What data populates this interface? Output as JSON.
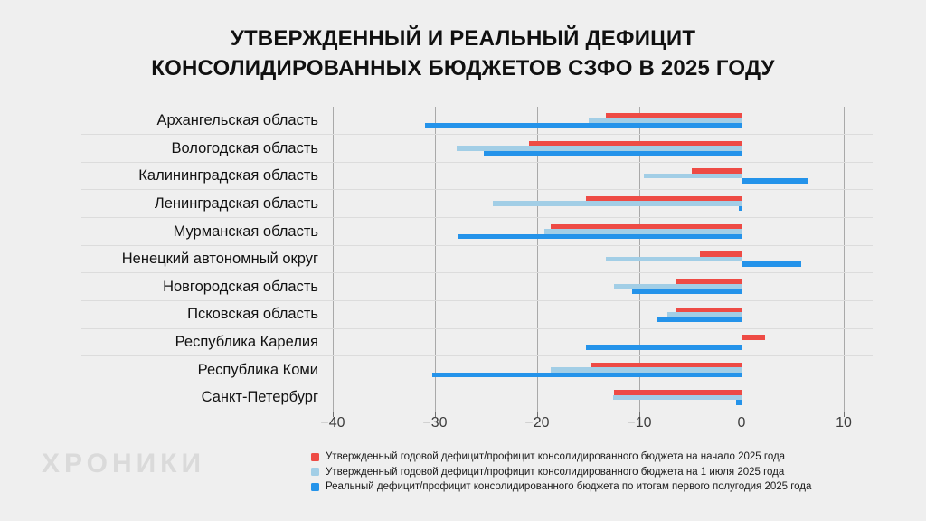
{
  "title": {
    "line1": "УТВЕРЖДЕННЫЙ И РЕАЛЬНЫЙ ДЕФИЦИТ",
    "line2": "КОНСОЛИДИРОВАННЫХ БЮДЖЕТОВ СЗФО В 2025 ГОДУ"
  },
  "logo": "ХРОНИКИ",
  "colors": {
    "background": "#efefef",
    "red": "#ee4b45",
    "light_blue": "#a2cee6",
    "blue": "#2493ea"
  },
  "chart_data": {
    "type": "bar",
    "orientation": "horizontal",
    "title": "УТВЕРЖДЕННЫЙ И РЕАЛЬНЫЙ ДЕФИЦИТ КОНСОЛИДИРОВАННЫХ БЮДЖЕТОВ СЗФО В 2025 ГОДУ",
    "categories": [
      "Архангельская область",
      "Вологодская область",
      "Калининградская область",
      "Ленинградская область",
      "Мурманская область",
      "Ненецкий автономный округ",
      "Новгородская область",
      "Псковская область",
      "Республика Карелия",
      "Республика Коми",
      "Санкт-Петербург"
    ],
    "series": [
      {
        "name": "Утвержденный годовой дефицит/профицит консолидированного бюджета на начало 2025 года",
        "color_key": "red",
        "values": [
          -13.3,
          -20.8,
          -4.9,
          -15.2,
          -18.7,
          -4.1,
          -6.5,
          -6.5,
          2.3,
          -14.8,
          -12.5
        ]
      },
      {
        "name": "Утвержденный годовой дефицит/профицит консолидированного бюджета на 1 июля 2025 года",
        "color_key": "light_blue",
        "values": [
          -15.0,
          -27.9,
          -9.6,
          -24.3,
          -19.3,
          -13.3,
          -12.5,
          -7.3,
          0,
          -18.7,
          -12.6
        ]
      },
      {
        "name": "Реальный дефицит/профицит консолидированного бюджета по итогам первого полугодия 2025 года",
        "color_key": "blue",
        "values": [
          -31.0,
          -25.2,
          6.5,
          -0.3,
          -27.8,
          5.8,
          -10.7,
          -8.3,
          -15.2,
          -30.3,
          -0.5
        ]
      }
    ],
    "x_ticks": [
      -40,
      -30,
      -20,
      -10,
      0,
      10
    ],
    "tick_labels": [
      "−40",
      "−30",
      "−20",
      "−10",
      "0",
      "10"
    ],
    "xlim": [
      -40,
      13
    ],
    "grid": true,
    "legend_position": "bottom"
  }
}
